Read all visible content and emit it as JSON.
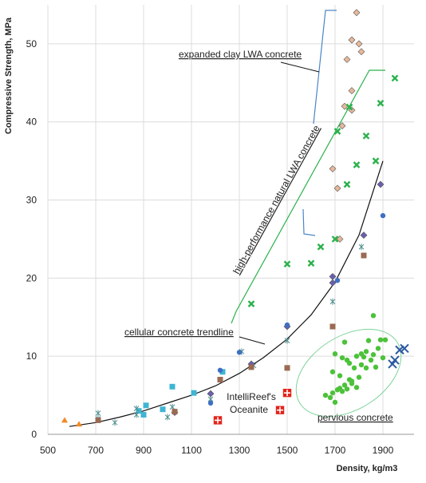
{
  "chart_data": {
    "type": "scatter",
    "x_label": "Density, kg/m3",
    "y_label": "Compressive Strength, MPa",
    "xlim": [
      500,
      2030
    ],
    "ylim": [
      0,
      55
    ],
    "xticks": [
      500,
      700,
      900,
      1100,
      1300,
      1500,
      1700,
      1900
    ],
    "yticks": [
      0,
      10,
      20,
      30,
      40,
      50
    ],
    "grid": true,
    "annotations": [
      "expanded clay LWA concrete",
      "high-performance natural LWA concrete",
      "cellular concrete trendline",
      "IntelliReef's",
      "Oceanite",
      "pervious concrete"
    ],
    "trendline": {
      "color": "#111111",
      "x": [
        590,
        700,
        800,
        900,
        1000,
        1100,
        1200,
        1300,
        1400,
        1500,
        1600,
        1700,
        1800,
        1900
      ],
      "y": [
        1.0,
        1.5,
        2.2,
        3.0,
        4.0,
        5.0,
        6.2,
        7.8,
        9.8,
        12.2,
        15.3,
        19.5,
        25.5,
        35
      ]
    },
    "series": [
      {
        "marker": "triangle",
        "color": "#f08a24",
        "x": [
          570,
          630
        ],
        "y": [
          1.8,
          1.3
        ]
      },
      {
        "marker": "square",
        "color": "#3fb5d3",
        "x": [
          880,
          910,
          980,
          1020,
          1110,
          1230,
          900
        ],
        "y": [
          3.0,
          3.7,
          3.2,
          6.1,
          5.3,
          8.0,
          2.5
        ]
      },
      {
        "marker": "asterisk",
        "color": "#4f8f8f",
        "x": [
          710,
          710,
          780,
          870,
          1020,
          1180,
          1310,
          1360,
          1500,
          1690,
          1810,
          870,
          1000
        ],
        "y": [
          2.7,
          2.0,
          1.5,
          3.3,
          3.5,
          4.5,
          10.6,
          8.8,
          12.0,
          17.0,
          24.0,
          2.5,
          2.2
        ]
      },
      {
        "marker": "diamond",
        "color": "#6a5fb0",
        "x": [
          1180,
          1350,
          1500,
          1690,
          1690,
          1820,
          1890,
          1030
        ],
        "y": [
          5.2,
          9.0,
          13.8,
          20.2,
          19.4,
          25.5,
          32.0,
          2.8
        ]
      },
      {
        "marker": "circle",
        "color": "#3f6fc4",
        "x": [
          1300,
          1500,
          1710,
          1900,
          1220,
          1180
        ],
        "y": [
          10.5,
          14.0,
          19.7,
          28.0,
          8.2,
          4.0
        ]
      },
      {
        "marker": "square",
        "color": "#9a6a52",
        "x": [
          1500,
          1690,
          1820,
          1350,
          1220,
          1030,
          710
        ],
        "y": [
          8.5,
          13.8,
          22.9,
          8.6,
          7.0,
          2.9,
          1.8
        ]
      },
      {
        "marker": "diamond",
        "color": "#e6b89a",
        "x": [
          1690,
          1710,
          1720,
          1730,
          1740,
          1770,
          1770,
          1750,
          1770,
          1800,
          1810,
          1790
        ],
        "y": [
          34,
          31.5,
          25,
          39.5,
          42,
          41.5,
          44,
          48,
          50.5,
          50,
          49,
          54
        ]
      },
      {
        "marker": "x",
        "color": "#2bb24c",
        "x": [
          1350,
          1500,
          1600,
          1640,
          1700,
          1710,
          1750,
          1790,
          1870,
          1830,
          1890,
          1950,
          1760
        ],
        "y": [
          16.7,
          21.8,
          21.9,
          24,
          25,
          38.8,
          32,
          34.5,
          35,
          38.2,
          42.4,
          45.6,
          41.9
        ]
      },
      {
        "marker": "circle",
        "color": "#4cc23a",
        "x": [
          1660,
          1680,
          1690,
          1700,
          1710,
          1720,
          1730,
          1740,
          1750,
          1700,
          1690,
          1720,
          1730,
          1760,
          1770,
          1780,
          1790,
          1800,
          1810,
          1820,
          1830,
          1840,
          1850,
          1860,
          1870,
          1880,
          1890,
          1900,
          1910,
          1750,
          1770,
          1790,
          1810,
          1830,
          1860,
          1740,
          1760
        ],
        "y": [
          5.0,
          4.7,
          5.3,
          4.1,
          5.7,
          5.9,
          5.5,
          11.8,
          9.5,
          10.3,
          8.0,
          7.5,
          9.8,
          7.0,
          6.5,
          8.5,
          10.0,
          7.3,
          10.3,
          9.9,
          10.6,
          12.0,
          9.5,
          15.2,
          8.6,
          11.0,
          12.1,
          9.8,
          12.1,
          5.8,
          6.8,
          6.0,
          8.9,
          8.5,
          10.2,
          6.3,
          9.1
        ]
      },
      {
        "marker": "bigx",
        "color": "#2d5aa0",
        "x": [
          1940,
          1950,
          1970,
          1990
        ],
        "y": [
          9.0,
          9.5,
          10.8,
          11.0
        ]
      },
      {
        "marker": "plus",
        "color": "#e2231a",
        "x": [
          1210,
          1470,
          1500
        ],
        "y": [
          1.8,
          3.1,
          5.3
        ]
      }
    ]
  }
}
